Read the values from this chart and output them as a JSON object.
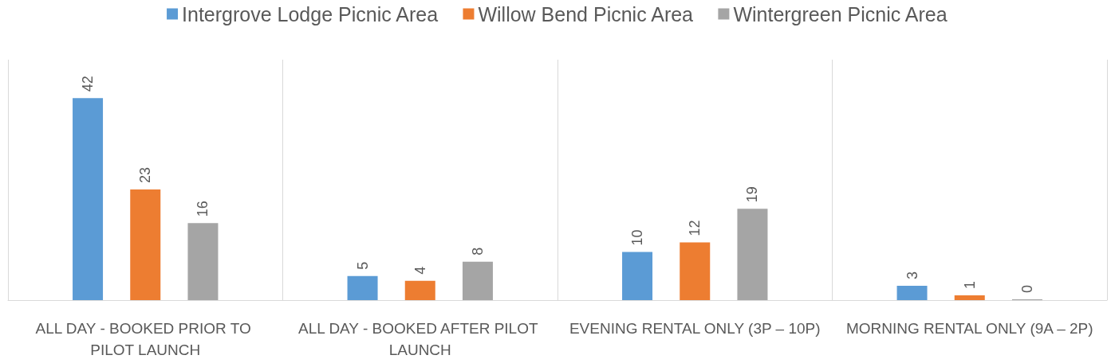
{
  "chart_data": {
    "type": "bar",
    "categories": [
      "ALL DAY - BOOKED PRIOR TO PILOT LAUNCH",
      "ALL DAY - BOOKED AFTER PILOT LAUNCH",
      "EVENING RENTAL ONLY (3P – 10P)",
      "MORNING RENTAL ONLY (9A – 2P)"
    ],
    "series": [
      {
        "name": "Intergrove Lodge Picnic Area",
        "color": "#5b9bd5",
        "values": [
          42,
          5,
          10,
          3
        ]
      },
      {
        "name": "Willow Bend Picnic Area",
        "color": "#ed7d31",
        "values": [
          23,
          4,
          12,
          1
        ]
      },
      {
        "name": "Wintergreen Picnic Area",
        "color": "#a5a5a5",
        "values": [
          16,
          8,
          19,
          0
        ]
      }
    ],
    "data_labels": true,
    "legend": "top",
    "grid": "x"
  }
}
